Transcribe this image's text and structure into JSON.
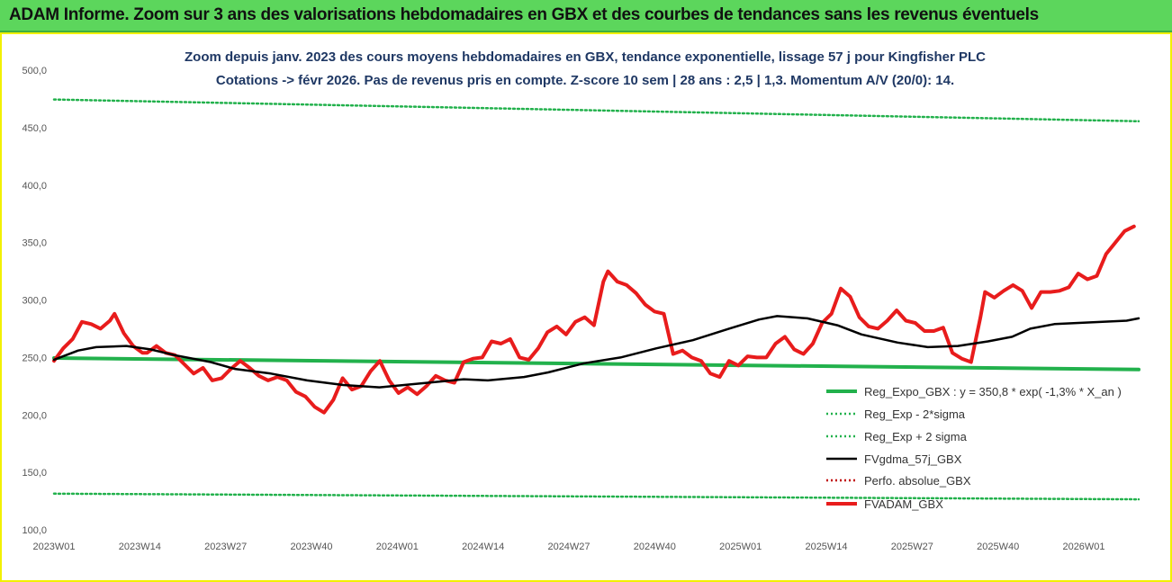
{
  "header": {
    "title": "ADAM Informe. Zoom sur 3 ans des valorisations hebdomadaires en GBX et des courbes de tendances sans les revenus éventuels"
  },
  "chart_data": {
    "type": "line",
    "title_lines": [
      "Zoom depuis janv. 2023 des cours moyens hebdomadaires en GBX, tendance exponentielle, lissage 57 j pour Kingfisher PLC",
      "Cotations -> févr 2026. Pas de revenus pris en compte. Z-score 10 sem | 28 ans : 2,5 | 1,3. Momentum A/V (20/0): 14."
    ],
    "xlabel": "",
    "ylabel": "",
    "ylim": [
      100,
      500
    ],
    "y_ticks": [
      "100,0",
      "150,0",
      "200,0",
      "250,0",
      "300,0",
      "350,0",
      "400,0",
      "450,0",
      "500,0"
    ],
    "x_ticks": [
      "2023W01",
      "2023W14",
      "2023W27",
      "2023W40",
      "2024W01",
      "2024W14",
      "2024W27",
      "2024W40",
      "2025W01",
      "2025W14",
      "2025W27",
      "2025W40",
      "2026W01"
    ],
    "x_range_weeks": [
      0,
      171
    ],
    "grid": false,
    "legend_position": "bottom-right",
    "series": [
      {
        "name": "Reg_Expo_GBX : y = 350,8 * exp( -1,3% * X_an )",
        "color": "#22b14c",
        "style": "solid-thick",
        "points": [
          [
            0,
            249.5
          ],
          [
            171,
            239.5
          ]
        ]
      },
      {
        "name": "Reg_Exp - 2*sigma",
        "color": "#22b14c",
        "style": "dotted",
        "points": [
          [
            0,
            131.5
          ],
          [
            171,
            126.5
          ]
        ]
      },
      {
        "name": "Reg_Exp + 2 sigma",
        "color": "#22b14c",
        "style": "dotted",
        "points": [
          [
            0,
            474.5
          ],
          [
            171,
            455.5
          ]
        ]
      },
      {
        "name": "FVgdma_57j_GBX",
        "color": "#000000",
        "style": "solid",
        "points": [
          [
            0,
            248
          ],
          [
            4,
            256
          ],
          [
            7,
            259
          ],
          [
            12,
            260
          ],
          [
            16,
            257
          ],
          [
            20,
            252
          ],
          [
            26,
            246
          ],
          [
            30,
            240
          ],
          [
            36,
            236
          ],
          [
            42,
            230
          ],
          [
            48,
            226
          ],
          [
            54,
            224
          ],
          [
            62,
            228
          ],
          [
            68,
            231
          ],
          [
            72,
            230
          ],
          [
            78,
            233
          ],
          [
            82,
            237
          ],
          [
            88,
            245
          ],
          [
            94,
            250
          ],
          [
            100,
            258
          ],
          [
            106,
            265
          ],
          [
            112,
            275
          ],
          [
            117,
            283
          ],
          [
            120,
            286
          ],
          [
            125,
            284
          ],
          [
            130,
            278
          ],
          [
            134,
            270
          ],
          [
            140,
            263
          ],
          [
            145,
            259
          ],
          [
            150,
            260
          ],
          [
            155,
            264
          ],
          [
            159,
            268
          ],
          [
            162,
            275
          ],
          [
            166,
            279
          ],
          [
            170,
            280
          ],
          [
            174,
            281
          ],
          [
            178,
            282
          ],
          [
            180,
            284
          ]
        ]
      },
      {
        "name": "Perfo. absolue_GBX",
        "color": "#c00000",
        "style": "dotted",
        "points": []
      },
      {
        "name": "FVADAM_GBX",
        "color": "#e81c1c",
        "style": "solid-thick",
        "points": [
          [
            0,
            247
          ],
          [
            2,
            258
          ],
          [
            4,
            266
          ],
          [
            6,
            281
          ],
          [
            8,
            279
          ],
          [
            10,
            275
          ],
          [
            12,
            282
          ],
          [
            13,
            288
          ],
          [
            15,
            271
          ],
          [
            17,
            260
          ],
          [
            19,
            254
          ],
          [
            20,
            254
          ],
          [
            22,
            260
          ],
          [
            24,
            254
          ],
          [
            26,
            252
          ],
          [
            28,
            244
          ],
          [
            30,
            236
          ],
          [
            32,
            241
          ],
          [
            34,
            230
          ],
          [
            36,
            232
          ],
          [
            38,
            240
          ],
          [
            40,
            247
          ],
          [
            42,
            241
          ],
          [
            44,
            234
          ],
          [
            46,
            230
          ],
          [
            48,
            233
          ],
          [
            50,
            230
          ],
          [
            52,
            220
          ],
          [
            54,
            216
          ],
          [
            56,
            207
          ],
          [
            58,
            202
          ],
          [
            60,
            213
          ],
          [
            62,
            232
          ],
          [
            64,
            222
          ],
          [
            66,
            225
          ],
          [
            68,
            238
          ],
          [
            70,
            247
          ],
          [
            72,
            230
          ],
          [
            74,
            219
          ],
          [
            76,
            224
          ],
          [
            78,
            218
          ],
          [
            80,
            225
          ],
          [
            82,
            234
          ],
          [
            84,
            230
          ],
          [
            86,
            228
          ],
          [
            88,
            246
          ],
          [
            90,
            249
          ],
          [
            92,
            250
          ],
          [
            94,
            264
          ],
          [
            96,
            262
          ],
          [
            98,
            266
          ],
          [
            100,
            250
          ],
          [
            102,
            248
          ],
          [
            104,
            258
          ],
          [
            106,
            272
          ],
          [
            108,
            277
          ],
          [
            110,
            270
          ],
          [
            112,
            281
          ],
          [
            114,
            285
          ],
          [
            116,
            278
          ],
          [
            118,
            316
          ],
          [
            119,
            325
          ],
          [
            121,
            316
          ],
          [
            123,
            313
          ],
          [
            125,
            306
          ],
          [
            127,
            296
          ],
          [
            129,
            290
          ],
          [
            131,
            288
          ],
          [
            133,
            253
          ],
          [
            135,
            256
          ],
          [
            137,
            250
          ],
          [
            139,
            247
          ],
          [
            141,
            236
          ],
          [
            143,
            233
          ],
          [
            145,
            247
          ],
          [
            147,
            243
          ],
          [
            149,
            251
          ],
          [
            151,
            250
          ],
          [
            153,
            250
          ],
          [
            155,
            262
          ],
          [
            157,
            268
          ],
          [
            159,
            257
          ],
          [
            161,
            253
          ],
          [
            163,
            262
          ],
          [
            165,
            280
          ],
          [
            167,
            288
          ],
          [
            169,
            310
          ],
          [
            171,
            303
          ],
          [
            173,
            285
          ],
          [
            175,
            277
          ],
          [
            177,
            275
          ],
          [
            179,
            282
          ],
          [
            181,
            291
          ],
          [
            183,
            282
          ],
          [
            185,
            280
          ],
          [
            187,
            273
          ],
          [
            189,
            273
          ],
          [
            191,
            276
          ],
          [
            193,
            254
          ],
          [
            195,
            249
          ],
          [
            197,
            246
          ],
          [
            199,
            285
          ],
          [
            200,
            307
          ],
          [
            202,
            302
          ],
          [
            204,
            308
          ],
          [
            206,
            313
          ],
          [
            208,
            308
          ],
          [
            210,
            293
          ],
          [
            212,
            307
          ],
          [
            214,
            307
          ],
          [
            216,
            308
          ],
          [
            218,
            311
          ],
          [
            220,
            323
          ],
          [
            222,
            318
          ],
          [
            224,
            321
          ],
          [
            226,
            340
          ],
          [
            228,
            350
          ],
          [
            230,
            360
          ],
          [
            232,
            364
          ]
        ]
      }
    ]
  }
}
